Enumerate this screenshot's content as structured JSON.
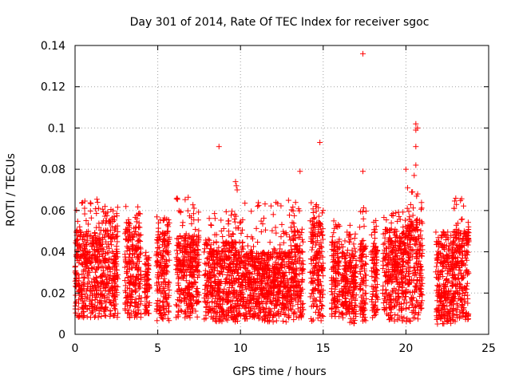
{
  "chart_data": {
    "type": "scatter",
    "title": "Day 301 of 2014, Rate Of TEC Index for receiver sgoc",
    "xlabel": "GPS time / hours",
    "ylabel": "ROTI / TECUs",
    "xlim": [
      0,
      25
    ],
    "ylim": [
      0,
      0.14
    ],
    "xticks": [
      "0",
      "5",
      "10",
      "15",
      "20",
      "25"
    ],
    "yticks": [
      "0",
      "0.02",
      "0.04",
      "0.06",
      "0.08",
      "0.1",
      "0.12",
      "0.14"
    ],
    "grid": true,
    "marker": "+",
    "series_color": "#ff0000",
    "clusters": [
      {
        "x0": 0.0,
        "x1": 1.7,
        "low": 0.008,
        "high": 0.05,
        "peak": 0.066
      },
      {
        "x0": 1.7,
        "x1": 2.6,
        "low": 0.008,
        "high": 0.055,
        "peak": 0.062
      },
      {
        "x0": 3.0,
        "x1": 4.0,
        "low": 0.008,
        "high": 0.052,
        "peak": 0.062
      },
      {
        "x0": 4.2,
        "x1": 4.5,
        "low": 0.01,
        "high": 0.035,
        "peak": 0.04
      },
      {
        "x0": 4.9,
        "x1": 5.7,
        "low": 0.006,
        "high": 0.05,
        "peak": 0.057
      },
      {
        "x0": 6.1,
        "x1": 7.5,
        "low": 0.008,
        "high": 0.048,
        "peak": 0.067
      },
      {
        "x0": 7.8,
        "x1": 10.2,
        "low": 0.006,
        "high": 0.045,
        "peak": 0.06
      },
      {
        "x0": 10.2,
        "x1": 13.0,
        "low": 0.006,
        "high": 0.04,
        "peak": 0.065
      },
      {
        "x0": 13.0,
        "x1": 13.8,
        "low": 0.006,
        "high": 0.05,
        "peak": 0.067
      },
      {
        "x0": 14.2,
        "x1": 15.0,
        "low": 0.006,
        "high": 0.055,
        "peak": 0.064
      },
      {
        "x0": 15.5,
        "x1": 16.0,
        "low": 0.008,
        "high": 0.045,
        "peak": 0.055
      },
      {
        "x0": 16.1,
        "x1": 16.6,
        "low": 0.008,
        "high": 0.04,
        "peak": 0.05
      },
      {
        "x0": 16.6,
        "x1": 17.0,
        "low": 0.005,
        "high": 0.04,
        "peak": 0.055
      },
      {
        "x0": 17.2,
        "x1": 17.6,
        "low": 0.006,
        "high": 0.045,
        "peak": 0.062
      },
      {
        "x0": 17.9,
        "x1": 18.3,
        "low": 0.008,
        "high": 0.045,
        "peak": 0.058
      },
      {
        "x0": 18.6,
        "x1": 19.9,
        "low": 0.006,
        "high": 0.05,
        "peak": 0.06
      },
      {
        "x0": 19.9,
        "x1": 21.0,
        "low": 0.006,
        "high": 0.055,
        "peak": 0.07
      },
      {
        "x0": 21.8,
        "x1": 22.9,
        "low": 0.004,
        "high": 0.045,
        "peak": 0.05
      },
      {
        "x0": 22.8,
        "x1": 23.8,
        "low": 0.006,
        "high": 0.05,
        "peak": 0.066
      }
    ],
    "outliers": [
      {
        "x": 8.7,
        "y": 0.091
      },
      {
        "x": 9.7,
        "y": 0.074
      },
      {
        "x": 9.75,
        "y": 0.072
      },
      {
        "x": 9.8,
        "y": 0.07
      },
      {
        "x": 13.6,
        "y": 0.079
      },
      {
        "x": 14.8,
        "y": 0.093
      },
      {
        "x": 17.4,
        "y": 0.136
      },
      {
        "x": 17.4,
        "y": 0.079
      },
      {
        "x": 20.0,
        "y": 0.08
      },
      {
        "x": 20.5,
        "y": 0.077
      },
      {
        "x": 20.6,
        "y": 0.102
      },
      {
        "x": 20.6,
        "y": 0.099
      },
      {
        "x": 20.6,
        "y": 0.091
      },
      {
        "x": 20.6,
        "y": 0.082
      },
      {
        "x": 20.7,
        "y": 0.1
      },
      {
        "x": 20.4,
        "y": 0.069
      },
      {
        "x": 20.1,
        "y": 0.071
      }
    ]
  }
}
